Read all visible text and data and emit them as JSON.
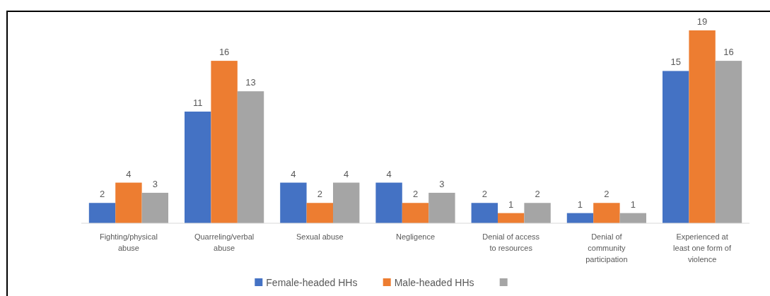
{
  "chart_data": {
    "type": "bar",
    "categories": [
      "Fighting/physical abuse",
      "Quarreling/verbal abuse",
      "Sexual abuse",
      "Negligence",
      "Denial of access to resources",
      "Denial of community participation",
      "Experienced at least one form of violence"
    ],
    "series": [
      {
        "name": "Female-headed HHs",
        "color": "#4472c4",
        "values": [
          2,
          11,
          4,
          4,
          2,
          1,
          15
        ]
      },
      {
        "name": "Male-headed HHs",
        "color": "#ed7d31",
        "values": [
          4,
          16,
          2,
          2,
          1,
          2,
          19
        ]
      },
      {
        "color": "#a5a5a5",
        "values": [
          3,
          13,
          4,
          3,
          2,
          1,
          16
        ]
      }
    ],
    "data_labels": true,
    "legend": "bottom",
    "grid": false
  }
}
